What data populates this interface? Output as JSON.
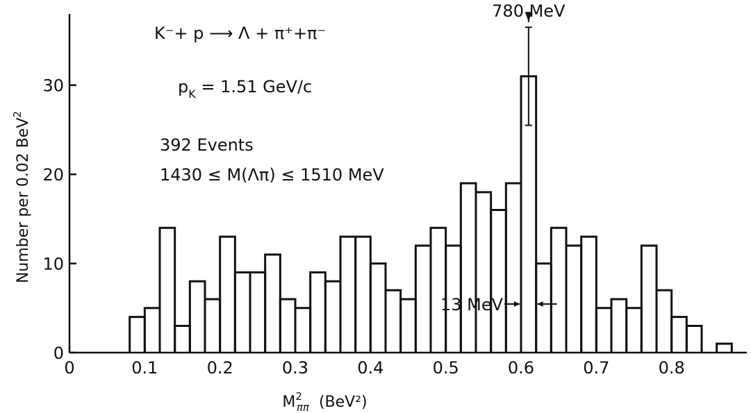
{
  "chart_data": {
    "type": "bar",
    "style": "histogram-step",
    "bin_width": 0.02,
    "x": [
      0.08,
      0.1,
      0.12,
      0.14,
      0.16,
      0.18,
      0.2,
      0.22,
      0.24,
      0.26,
      0.28,
      0.3,
      0.32,
      0.34,
      0.36,
      0.38,
      0.4,
      0.42,
      0.44,
      0.46,
      0.48,
      0.5,
      0.52,
      0.54,
      0.56,
      0.58,
      0.6,
      0.62,
      0.64,
      0.66,
      0.68,
      0.7,
      0.72,
      0.74,
      0.76,
      0.78,
      0.8,
      0.82,
      0.84,
      0.86
    ],
    "values": [
      4,
      5,
      14,
      3,
      8,
      6,
      13,
      9,
      9,
      11,
      6,
      5,
      9,
      8,
      13,
      13,
      10,
      7,
      6,
      12,
      14,
      12,
      19,
      18,
      16,
      19,
      31,
      10,
      14,
      12,
      13,
      5,
      6,
      5,
      12,
      7,
      4,
      3,
      0,
      1
    ],
    "error_bar": {
      "x": 0.61,
      "value": 31,
      "low": 25.5,
      "high": 36.5
    },
    "xlabel": "M²ππ (BeV²)",
    "xlabel_main": "M",
    "xlabel_sup": "2",
    "xlabel_sub": "ππ",
    "xlabel_unit": "(BeV²)",
    "ylabel": "Number per 0.02 BeV²",
    "ylabel_main": "Number per 0.02 BeV",
    "ylabel_sup": "2",
    "xlim": [
      0,
      0.9
    ],
    "ylim": [
      0,
      38
    ],
    "xticks": [
      0,
      0.1,
      0.2,
      0.3,
      0.4,
      0.5,
      0.6,
      0.7,
      0.8
    ],
    "xtick_labels": [
      "0",
      "0.1",
      "0.2",
      "0.3",
      "0.4",
      "0.5",
      "0.6",
      "0.7",
      "0.8"
    ],
    "yticks": [
      0,
      10,
      20,
      30
    ],
    "ytick_labels": [
      "0",
      "10",
      "20",
      "30"
    ],
    "grid": false,
    "annotations": {
      "reaction": "K⁻+ p ⟶ Λ + π⁺+π⁻",
      "momentum": "pK = 1.51 GeV/c",
      "momentum_main": "p",
      "momentum_sub": "K",
      "momentum_rest": " = 1.51 GeV/c",
      "events": "392 Events",
      "mass_cut": "1430 ≤ M(Λπ) ≤ 1510 MeV",
      "peak_label": "780 MeV",
      "peak_x": 0.61,
      "resolution_label": "13 MeV",
      "resolution_x": [
        0.6,
        0.62
      ]
    }
  }
}
